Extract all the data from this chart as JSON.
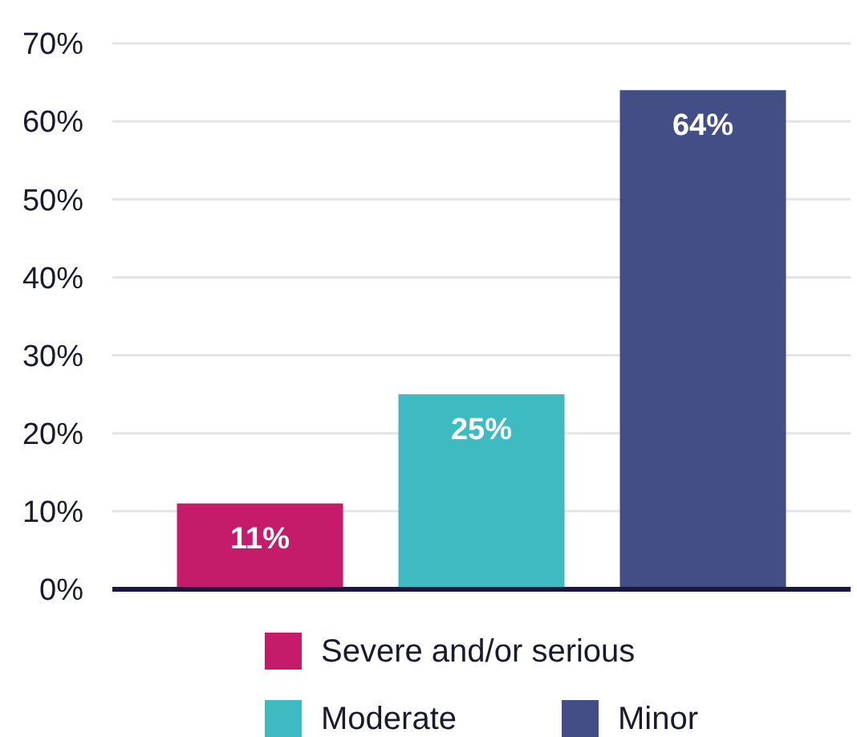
{
  "chart_data": {
    "type": "bar",
    "categories": [
      null,
      null,
      null
    ],
    "series": [
      {
        "name": "Severe and/or serious",
        "color": "#c41c6b",
        "values": [
          11,
          null,
          null
        ],
        "value_labels": [
          "11%",
          null,
          null
        ]
      },
      {
        "name": "Moderate",
        "color": "#3ebac1",
        "values": [
          null,
          25,
          null
        ],
        "value_labels": [
          null,
          "25%",
          null
        ]
      },
      {
        "name": "Minor",
        "color": "#434e87",
        "values": [
          null,
          null,
          64
        ],
        "value_labels": [
          null,
          null,
          "64%"
        ]
      }
    ],
    "ylim": [
      0,
      70
    ],
    "yticks": [
      {
        "value": 0,
        "label": "0%"
      },
      {
        "value": 10,
        "label": "10%"
      },
      {
        "value": 20,
        "label": "20%"
      },
      {
        "value": 30,
        "label": "30%"
      },
      {
        "value": 40,
        "label": "40%"
      },
      {
        "value": 50,
        "label": "50%"
      },
      {
        "value": 60,
        "label": "60%"
      },
      {
        "value": 70,
        "label": "70%"
      }
    ],
    "grid": "y",
    "legend": "bottom"
  }
}
